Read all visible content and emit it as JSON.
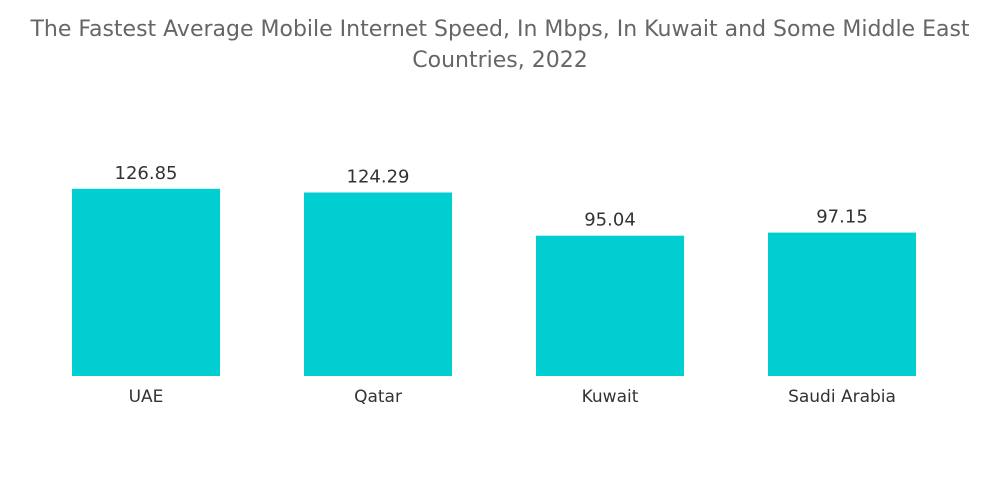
{
  "chart_data": {
    "type": "bar",
    "title": "The Fastest Average Mobile Internet Speed, In Mbps, In Kuwait and Some Middle East Countries, 2022",
    "categories": [
      "UAE",
      "Qatar",
      "Kuwait",
      "Saudi Arabia"
    ],
    "values": [
      126.85,
      124.29,
      95.04,
      97.15
    ],
    "value_labels": [
      "126.85",
      "124.29",
      "95.04",
      "97.15"
    ],
    "xlabel": "",
    "ylabel": "",
    "ylim": [
      0,
      130
    ],
    "grid": false,
    "legend": "none",
    "bar_color": "#00CED1",
    "background_color": "#FFFFFF",
    "title_color": "#666666",
    "label_color": "#333333"
  }
}
